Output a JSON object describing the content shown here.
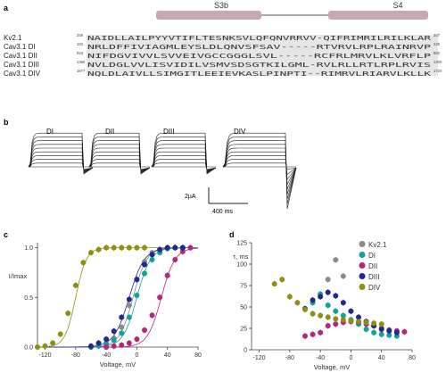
{
  "panel_labels": {
    "a": "a",
    "b": "b",
    "c": "c",
    "d": "d"
  },
  "alignment": {
    "helix_labels": [
      "S3b",
      "S4"
    ],
    "rows": [
      {
        "name": "Kv2.1",
        "start": "258",
        "seq": "NAIDLLAILPYYVTIFLTESNKSVLQFQNVRRVV-QIFRIMRILRILKLAR",
        "end": "307"
      },
      {
        "name": "Cav3.1 DI",
        "start": "183",
        "seq": "NRLDFFIVIAGMLEYSLDLQNVSFSAV-----RTVRVLRPLRAINRVP",
        "end": "226"
      },
      {
        "name": "Cav3.1 DII",
        "start": "843",
        "seq": "NIFDGVIVVLSVVEIVGCCGGGLSVL-----RCFRLMRVLKLVRFLP",
        "end": "882"
      },
      {
        "name": "Cav3.1 DIII",
        "start": "1355",
        "seq": "NVLDGLVVLISVIDILVSMVSDSGTKILGML-RVLRLLRTLRPLRVIS",
        "end": "1400"
      },
      {
        "name": "Cav3.1 DIV",
        "start": "1677",
        "seq": "NQLDLAIVLLSIMGITLEEIEVKASLPINPTI--RIMRVLRIARVLKLLK",
        "end": "1720"
      }
    ]
  },
  "traces": {
    "labels": [
      "DI",
      "DII",
      "DIII",
      "DIV"
    ],
    "scale_current": "2µA",
    "scale_time": "400 ms"
  },
  "chart_data": [
    {
      "type": "scatter",
      "title": "",
      "xlabel": "Voltage, mV",
      "ylabel": "I/Imax",
      "xlim": [
        -130,
        80
      ],
      "ylim": [
        0,
        1.05
      ],
      "xticks": [
        -120,
        -80,
        -40,
        0,
        40,
        80
      ],
      "yticks": [
        0.0,
        0.5,
        1.0
      ],
      "series": [
        {
          "name": "Kv2.1",
          "color": "#8a8a8a",
          "v_half": -5,
          "slope": 9,
          "x": [
            -60,
            -50,
            -40,
            -30,
            -20,
            -10,
            0,
            10,
            20,
            30,
            40,
            50,
            60
          ],
          "y": [
            0.0,
            0.02,
            0.04,
            0.09,
            0.2,
            0.42,
            0.68,
            0.86,
            0.95,
            0.98,
            1.0,
            1.0,
            1.0
          ]
        },
        {
          "name": "DI",
          "color": "#14a19a",
          "v_half": 0,
          "slope": 9,
          "x": [
            -60,
            -50,
            -40,
            -30,
            -20,
            -10,
            0,
            10,
            20,
            30,
            40,
            50,
            60
          ],
          "y": [
            0.0,
            0.01,
            0.03,
            0.07,
            0.14,
            0.3,
            0.52,
            0.74,
            0.88,
            0.95,
            0.99,
            1.0,
            1.0
          ]
        },
        {
          "name": "DII",
          "color": "#b4267a",
          "v_half": 32,
          "slope": 9,
          "x": [
            -40,
            -30,
            -20,
            -10,
            0,
            10,
            20,
            30,
            40,
            50,
            60,
            70
          ],
          "y": [
            0.0,
            0.01,
            0.02,
            0.04,
            0.08,
            0.17,
            0.32,
            0.5,
            0.72,
            0.88,
            0.96,
            1.0
          ]
        },
        {
          "name": "DIII",
          "color": "#1f2a8c",
          "v_half": -10,
          "slope": 10,
          "x": [
            -60,
            -50,
            -40,
            -30,
            -20,
            -10,
            0,
            10,
            20,
            30,
            40,
            50,
            60
          ],
          "y": [
            0.01,
            0.04,
            0.08,
            0.16,
            0.3,
            0.48,
            0.68,
            0.83,
            0.93,
            0.98,
            1.0,
            1.0,
            1.0
          ]
        },
        {
          "name": "DIV",
          "color": "#8f8f12",
          "v_half": -80,
          "slope": 7,
          "x": [
            -130,
            -120,
            -110,
            -100,
            -90,
            -80,
            -70,
            -60,
            -50,
            -40,
            -30,
            -20,
            -10,
            0,
            10
          ],
          "y": [
            0.0,
            0.01,
            0.04,
            0.13,
            0.34,
            0.62,
            0.85,
            0.95,
            0.98,
            1.0,
            1.0,
            1.0,
            1.0,
            1.0,
            1.0
          ]
        }
      ]
    },
    {
      "type": "scatter",
      "title": "",
      "xlabel": "Voltage, mV",
      "ylabel": "τ, ms",
      "xlim": [
        -130,
        80
      ],
      "ylim": [
        0,
        125
      ],
      "xticks": [
        -120,
        -80,
        -40,
        0,
        40,
        80
      ],
      "yticks": [
        0,
        25,
        50,
        75,
        100,
        125
      ],
      "series": [
        {
          "name": "Kv2.1",
          "color": "#8a8a8a",
          "x": [
            -30,
            -20,
            -10
          ],
          "y": [
            82,
            105,
            86
          ]
        },
        {
          "name": "DI",
          "color": "#14a19a",
          "x": [
            -50,
            -40,
            -30,
            -20,
            -10,
            0,
            10,
            20,
            30,
            40,
            50,
            60
          ],
          "y": [
            55,
            65,
            52,
            45,
            40,
            35,
            30,
            24,
            20,
            18,
            17,
            16
          ]
        },
        {
          "name": "DII",
          "color": "#b4267a",
          "x": [
            -60,
            -50,
            -40,
            -30,
            -20,
            -10,
            0,
            10,
            20,
            30,
            40,
            50,
            60,
            70
          ],
          "y": [
            16,
            18,
            20,
            28,
            30,
            32,
            33,
            32,
            30,
            28,
            25,
            23,
            22,
            21
          ]
        },
        {
          "name": "DIII",
          "color": "#1f2a8c",
          "x": [
            -60,
            -50,
            -40,
            -30,
            -20,
            -10,
            0,
            10,
            20,
            30,
            40,
            50,
            60
          ],
          "y": [
            48,
            58,
            62,
            67,
            63,
            55,
            45,
            38,
            33,
            28,
            24,
            22,
            20
          ]
        },
        {
          "name": "DIV",
          "color": "#8f8f12",
          "x": [
            -100,
            -90,
            -80,
            -70,
            -60,
            -50,
            -40,
            -30,
            -20,
            -10,
            0,
            10,
            20,
            30,
            40
          ],
          "y": [
            77,
            82,
            62,
            55,
            47,
            42,
            40,
            38,
            36,
            35,
            34,
            33,
            32,
            31,
            30
          ]
        }
      ]
    }
  ]
}
